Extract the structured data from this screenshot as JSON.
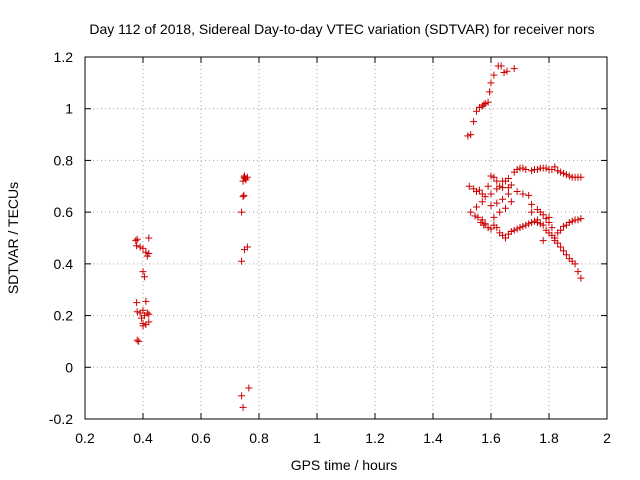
{
  "chart_data": {
    "type": "scatter",
    "title": "Day 112 of 2018, Sidereal Day-to-day VTEC variation (SDTVAR) for receiver nors",
    "xlabel": "GPS time / hours",
    "ylabel": "SDTVAR / TECUs",
    "xlim": [
      0.2,
      2.0
    ],
    "ylim": [
      -0.2,
      1.2
    ],
    "xticks": [
      0.2,
      0.4,
      0.6,
      0.8,
      1.0,
      1.2,
      1.4,
      1.6,
      1.8,
      2.0
    ],
    "xtick_labels": [
      "0.2",
      "0.4",
      "0.6",
      "0.8",
      "1",
      "1.2",
      "1.4",
      "1.6",
      "1.8",
      "2"
    ],
    "yticks": [
      -0.2,
      0,
      0.2,
      0.4,
      0.6,
      0.8,
      1.0,
      1.2
    ],
    "ytick_labels": [
      "-0.2",
      "0",
      "0.2",
      "0.4",
      "0.6",
      "0.8",
      "1",
      "1.2"
    ],
    "grid": true,
    "marker": "+",
    "color": "#cc0000",
    "series": [
      {
        "name": "SDTVAR",
        "points": [
          [
            0.375,
            0.49
          ],
          [
            0.38,
            0.495
          ],
          [
            0.378,
            0.47
          ],
          [
            0.39,
            0.465
          ],
          [
            0.4,
            0.46
          ],
          [
            0.41,
            0.445
          ],
          [
            0.415,
            0.43
          ],
          [
            0.42,
            0.5
          ],
          [
            0.42,
            0.44
          ],
          [
            0.4,
            0.37
          ],
          [
            0.405,
            0.35
          ],
          [
            0.378,
            0.25
          ],
          [
            0.41,
            0.255
          ],
          [
            0.38,
            0.215
          ],
          [
            0.39,
            0.21
          ],
          [
            0.4,
            0.22
          ],
          [
            0.405,
            0.2
          ],
          [
            0.415,
            0.21
          ],
          [
            0.42,
            0.205
          ],
          [
            0.395,
            0.19
          ],
          [
            0.4,
            0.17
          ],
          [
            0.41,
            0.165
          ],
          [
            0.42,
            0.175
          ],
          [
            0.4,
            0.16
          ],
          [
            0.38,
            0.105
          ],
          [
            0.385,
            0.1
          ],
          [
            0.74,
            0.6
          ],
          [
            0.745,
            0.66
          ],
          [
            0.748,
            0.665
          ],
          [
            0.745,
            0.72
          ],
          [
            0.748,
            0.735
          ],
          [
            0.75,
            0.74
          ],
          [
            0.752,
            0.73
          ],
          [
            0.755,
            0.725
          ],
          [
            0.76,
            0.735
          ],
          [
            0.74,
            0.41
          ],
          [
            0.75,
            0.455
          ],
          [
            0.76,
            0.465
          ],
          [
            0.74,
            -0.11
          ],
          [
            0.745,
            -0.155
          ],
          [
            0.765,
            -0.08
          ],
          [
            1.52,
            0.895
          ],
          [
            1.53,
            0.9
          ],
          [
            1.54,
            0.95
          ],
          [
            1.55,
            0.99
          ],
          [
            1.56,
            1.005
          ],
          [
            1.57,
            1.01
          ],
          [
            1.575,
            1.015
          ],
          [
            1.58,
            1.02
          ],
          [
            1.59,
            1.025
          ],
          [
            1.595,
            1.065
          ],
          [
            1.6,
            1.1
          ],
          [
            1.61,
            1.13
          ],
          [
            1.625,
            1.165
          ],
          [
            1.635,
            1.165
          ],
          [
            1.645,
            1.14
          ],
          [
            1.655,
            1.145
          ],
          [
            1.68,
            1.155
          ],
          [
            1.525,
            0.7
          ],
          [
            1.54,
            0.69
          ],
          [
            1.55,
            0.68
          ],
          [
            1.56,
            0.685
          ],
          [
            1.57,
            0.67
          ],
          [
            1.58,
            0.66
          ],
          [
            1.59,
            0.7
          ],
          [
            1.6,
            0.74
          ],
          [
            1.61,
            0.735
          ],
          [
            1.62,
            0.72
          ],
          [
            1.63,
            0.7
          ],
          [
            1.64,
            0.695
          ],
          [
            1.65,
            0.72
          ],
          [
            1.66,
            0.695
          ],
          [
            1.67,
            0.705
          ],
          [
            1.68,
            0.755
          ],
          [
            1.69,
            0.765
          ],
          [
            1.7,
            0.77
          ],
          [
            1.71,
            0.77
          ],
          [
            1.72,
            0.765
          ],
          [
            1.74,
            0.76
          ],
          [
            1.75,
            0.765
          ],
          [
            1.76,
            0.765
          ],
          [
            1.77,
            0.77
          ],
          [
            1.78,
            0.77
          ],
          [
            1.79,
            0.77
          ],
          [
            1.8,
            0.765
          ],
          [
            1.81,
            0.765
          ],
          [
            1.82,
            0.775
          ],
          [
            1.83,
            0.76
          ],
          [
            1.84,
            0.755
          ],
          [
            1.85,
            0.75
          ],
          [
            1.86,
            0.745
          ],
          [
            1.87,
            0.74
          ],
          [
            1.88,
            0.735
          ],
          [
            1.89,
            0.735
          ],
          [
            1.9,
            0.735
          ],
          [
            1.91,
            0.735
          ],
          [
            1.53,
            0.6
          ],
          [
            1.545,
            0.585
          ],
          [
            1.555,
            0.58
          ],
          [
            1.565,
            0.56
          ],
          [
            1.575,
            0.55
          ],
          [
            1.59,
            0.54
          ],
          [
            1.6,
            0.535
          ],
          [
            1.61,
            0.55
          ],
          [
            1.62,
            0.54
          ],
          [
            1.63,
            0.52
          ],
          [
            1.64,
            0.51
          ],
          [
            1.65,
            0.5
          ],
          [
            1.66,
            0.515
          ],
          [
            1.67,
            0.525
          ],
          [
            1.68,
            0.53
          ],
          [
            1.69,
            0.535
          ],
          [
            1.7,
            0.54
          ],
          [
            1.71,
            0.545
          ],
          [
            1.72,
            0.55
          ],
          [
            1.73,
            0.555
          ],
          [
            1.74,
            0.56
          ],
          [
            1.75,
            0.565
          ],
          [
            1.76,
            0.56
          ],
          [
            1.77,
            0.555
          ],
          [
            1.78,
            0.55
          ],
          [
            1.79,
            0.53
          ],
          [
            1.8,
            0.52
          ],
          [
            1.81,
            0.51
          ],
          [
            1.82,
            0.5
          ],
          [
            1.83,
            0.52
          ],
          [
            1.84,
            0.53
          ],
          [
            1.85,
            0.545
          ],
          [
            1.86,
            0.55
          ],
          [
            1.87,
            0.56
          ],
          [
            1.88,
            0.565
          ],
          [
            1.89,
            0.57
          ],
          [
            1.9,
            0.57
          ],
          [
            1.91,
            0.575
          ],
          [
            1.55,
            0.62
          ],
          [
            1.57,
            0.64
          ],
          [
            1.6,
            0.625
          ],
          [
            1.62,
            0.635
          ],
          [
            1.64,
            0.65
          ],
          [
            1.66,
            0.67
          ],
          [
            1.69,
            0.68
          ],
          [
            1.71,
            0.67
          ],
          [
            1.73,
            0.665
          ],
          [
            1.74,
            0.63
          ],
          [
            1.76,
            0.61
          ],
          [
            1.77,
            0.6
          ],
          [
            1.78,
            0.59
          ],
          [
            1.79,
            0.575
          ],
          [
            1.8,
            0.56
          ],
          [
            1.81,
            0.54
          ],
          [
            1.82,
            0.5
          ],
          [
            1.83,
            0.48
          ],
          [
            1.84,
            0.465
          ],
          [
            1.85,
            0.45
          ],
          [
            1.86,
            0.435
          ],
          [
            1.87,
            0.42
          ],
          [
            1.88,
            0.41
          ],
          [
            1.89,
            0.4
          ],
          [
            1.9,
            0.37
          ],
          [
            1.91,
            0.345
          ],
          [
            1.57,
            0.57
          ],
          [
            1.58,
            0.555
          ],
          [
            1.61,
            0.58
          ],
          [
            1.63,
            0.6
          ],
          [
            1.65,
            0.615
          ],
          [
            1.67,
            0.64
          ],
          [
            1.74,
            0.6
          ],
          [
            1.76,
            0.57
          ],
          [
            1.8,
            0.58
          ],
          [
            1.82,
            0.49
          ],
          [
            1.78,
            0.49
          ],
          [
            1.6,
            0.67
          ],
          [
            1.62,
            0.69
          ],
          [
            1.64,
            0.72
          ],
          [
            1.66,
            0.73
          ]
        ]
      }
    ]
  }
}
